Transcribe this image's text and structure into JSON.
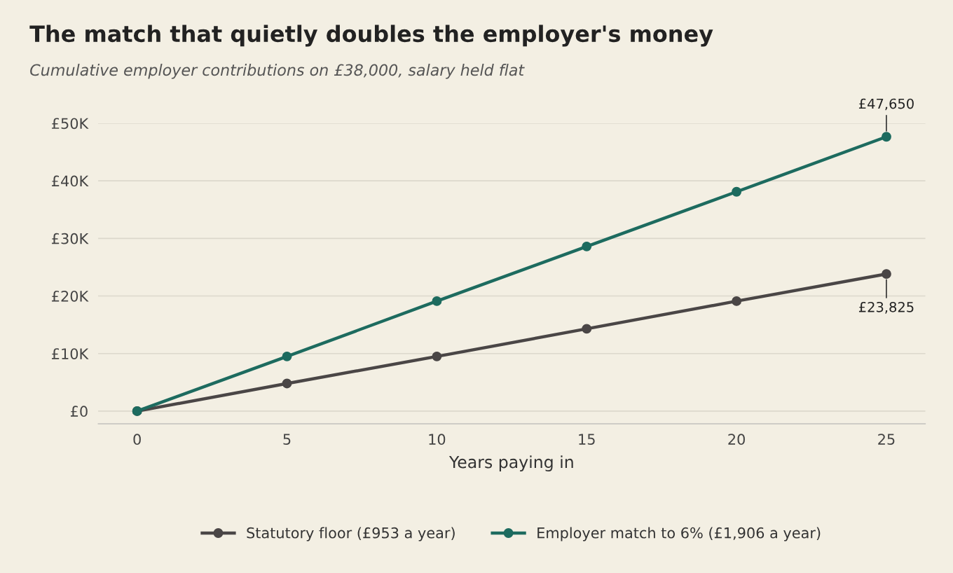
{
  "chart_data": {
    "type": "line",
    "title": "The match that quietly doubles the employer's money",
    "subtitle": "Cumulative employer contributions on £38,000, salary held flat",
    "xlabel": "Years paying in",
    "x": [
      0,
      5,
      10,
      15,
      20,
      25
    ],
    "series": [
      {
        "name": "Statutory floor (£953 a year)",
        "color": "#4a4646",
        "values": [
          0,
          4800,
          9500,
          14300,
          19100,
          23825
        ]
      },
      {
        "name": "Employer match to 6% (£1,906 a year)",
        "color": "#1d6b5f",
        "values": [
          0,
          9500,
          19100,
          28600,
          38100,
          47650
        ]
      }
    ],
    "annotations": [
      {
        "text": "£47,650",
        "x": 25,
        "y": 47650
      },
      {
        "text": "£23,825",
        "x": 25,
        "y": 23825
      }
    ],
    "xlim": [
      -1.3,
      26.3
    ],
    "xticks": [
      0,
      5,
      10,
      15,
      20,
      25
    ],
    "ylim": [
      -2200,
      50000
    ],
    "yticks": [
      {
        "value": 0,
        "label": "£0"
      },
      {
        "value": 10000,
        "label": "£10K"
      },
      {
        "value": 20000,
        "label": "£20K"
      },
      {
        "value": 30000,
        "label": "£30K"
      },
      {
        "value": 40000,
        "label": "£40K"
      },
      {
        "value": 50000,
        "label": "£50K"
      }
    ],
    "grid": "y",
    "legend": "bottom",
    "marker": "circle",
    "line_style": "solid"
  }
}
